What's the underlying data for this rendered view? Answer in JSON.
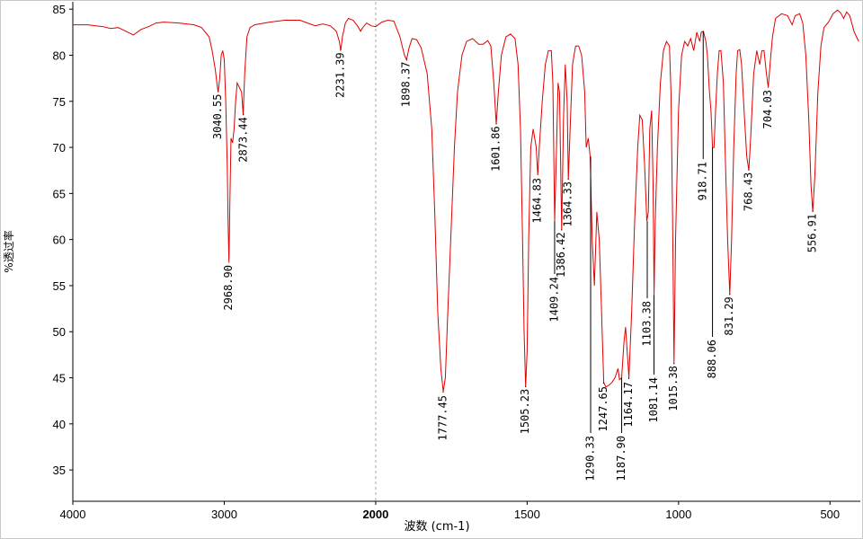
{
  "chart_data": {
    "type": "line",
    "x_label": "波数 (cm-1)",
    "y_label": "%透过率",
    "color": "#e00000",
    "xlim": [
      4000,
      400
    ],
    "x_break": 2000,
    "ylim": [
      31.6,
      85.8
    ],
    "xticks": [
      4000,
      3000,
      2000,
      1500,
      1000,
      500
    ],
    "yticks": [
      35,
      40,
      45,
      50,
      55,
      60,
      65,
      70,
      75,
      80,
      85
    ],
    "x": [
      4000,
      3900,
      3800,
      3750,
      3700,
      3650,
      3600,
      3550,
      3500,
      3450,
      3400,
      3300,
      3200,
      3150,
      3100,
      3080,
      3060,
      3045,
      3040,
      3030,
      3020,
      3010,
      3000,
      2990,
      2980,
      2975,
      2969,
      2963,
      2955,
      2945,
      2935,
      2925,
      2915,
      2900,
      2885,
      2875,
      2865,
      2850,
      2830,
      2800,
      2700,
      2600,
      2500,
      2450,
      2400,
      2350,
      2300,
      2260,
      2240,
      2231,
      2220,
      2200,
      2180,
      2150,
      2120,
      2100,
      2090,
      2060,
      2030,
      2000,
      1980,
      1960,
      1940,
      1920,
      1905,
      1898,
      1890,
      1880,
      1865,
      1850,
      1830,
      1815,
      1805,
      1795,
      1785,
      1777,
      1770,
      1762,
      1750,
      1740,
      1730,
      1715,
      1700,
      1680,
      1660,
      1645,
      1630,
      1620,
      1610,
      1602,
      1595,
      1585,
      1570,
      1555,
      1540,
      1530,
      1522,
      1515,
      1510,
      1505,
      1500,
      1495,
      1488,
      1480,
      1470,
      1465,
      1460,
      1450,
      1440,
      1430,
      1420,
      1415,
      1409,
      1403,
      1398,
      1393,
      1386,
      1380,
      1374,
      1368,
      1364,
      1358,
      1350,
      1340,
      1330,
      1320,
      1310,
      1305,
      1298,
      1292,
      1285,
      1278,
      1270,
      1262,
      1255,
      1247,
      1240,
      1230,
      1220,
      1210,
      1200,
      1195,
      1188,
      1180,
      1175,
      1170,
      1164,
      1155,
      1145,
      1135,
      1128,
      1120,
      1112,
      1105,
      1100,
      1095,
      1089,
      1084,
      1081,
      1077,
      1070,
      1060,
      1050,
      1040,
      1030,
      1025,
      1020,
      1015,
      1010,
      1000,
      990,
      980,
      970,
      960,
      950,
      940,
      930,
      925,
      918,
      910,
      905,
      898,
      893,
      888,
      883,
      878,
      872,
      866,
      860,
      852,
      845,
      838,
      831,
      825,
      818,
      810,
      805,
      798,
      792,
      782,
      775,
      768,
      762,
      752,
      742,
      732,
      725,
      718,
      710,
      704,
      698,
      690,
      680,
      660,
      640,
      625,
      615,
      600,
      590,
      580,
      570,
      563,
      557,
      550,
      540,
      530,
      520,
      505,
      490,
      475,
      465,
      455,
      445,
      435,
      420,
      405
    ],
    "values": [
      83.3,
      83.3,
      83.1,
      82.9,
      83.0,
      82.6,
      82.2,
      82.8,
      83.1,
      83.5,
      83.6,
      83.5,
      83.3,
      83.0,
      82.0,
      80.5,
      78.5,
      76.5,
      76.0,
      77.5,
      80.0,
      80.5,
      79.5,
      75,
      68,
      62,
      57.5,
      64,
      71,
      70.5,
      72,
      75,
      77.0,
      76.5,
      76.0,
      73.5,
      78,
      82,
      83,
      83.3,
      83.6,
      83.8,
      83.8,
      83.5,
      83.2,
      83.4,
      83.2,
      82.6,
      81.5,
      80.5,
      82,
      83.5,
      84.0,
      83.8,
      83.2,
      82.6,
      82.9,
      83.5,
      83.2,
      83.1,
      83.6,
      83.8,
      83.7,
      82.0,
      80.0,
      79.5,
      80.8,
      81.8,
      81.7,
      80.8,
      78,
      72,
      63,
      52,
      46,
      43.5,
      45,
      52,
      62,
      70,
      76,
      80,
      81.5,
      81.8,
      81.2,
      81.2,
      81.6,
      81,
      77,
      72.5,
      76,
      80,
      82,
      82.3,
      81.8,
      79,
      72,
      60,
      50,
      44,
      48,
      60,
      70,
      72,
      70,
      67,
      70,
      75,
      79,
      80.5,
      80.5,
      77,
      62,
      70,
      77,
      76,
      61,
      73,
      79,
      75,
      66.5,
      72,
      79,
      81,
      81,
      80,
      76,
      70,
      71,
      69,
      60,
      55,
      63,
      60,
      53,
      44.5,
      44,
      44.2,
      44.5,
      45,
      46,
      44.8,
      45,
      49,
      50.5,
      48,
      45,
      52,
      62,
      70,
      73.5,
      73,
      68,
      62,
      63,
      72,
      74,
      66,
      54,
      62,
      70,
      77,
      80.5,
      81.5,
      81,
      76,
      63,
      46.5,
      60,
      74,
      80,
      81.5,
      81,
      81.8,
      80.5,
      82.5,
      81.5,
      82.5,
      82.6,
      81.5,
      80,
      76,
      74,
      70,
      70,
      74,
      78,
      80.5,
      80.5,
      77,
      68,
      60,
      54,
      60,
      70,
      78,
      80.5,
      80.6,
      79,
      73,
      69,
      67.5,
      71,
      78,
      80.5,
      79,
      80.5,
      80.5,
      78,
      76.5,
      79,
      82,
      84,
      84.5,
      84.3,
      83.3,
      84.3,
      84.5,
      83.5,
      80,
      73,
      66,
      63,
      67,
      76,
      81,
      83,
      83.6,
      84.5,
      84.9,
      84.6,
      84.0,
      84.7,
      84.3,
      82.5,
      81.5
    ],
    "peaks": [
      {
        "x": 3040.55,
        "y": 76.0
      },
      {
        "x": {
          "value": 2968.9,
          "label": "2968.90"
        },
        "y": 57.5
      },
      {
        "x": 2873.44,
        "y": 73.5
      },
      {
        "x": 2231.39,
        "y": 80.5
      },
      {
        "x": 1898.37,
        "y": 79.5
      },
      {
        "x": 1777.45,
        "y": 43.5
      },
      {
        "x": 1601.86,
        "y": 72.5
      },
      {
        "x": 1505.23,
        "y": 44.0
      },
      {
        "x": 1464.83,
        "y": 67.0
      },
      {
        "x": 1409.24,
        "y": 62.0
      },
      {
        "x": 1386.42,
        "y": 61.0
      },
      {
        "x": 1364.33,
        "y": 66.5
      },
      {
        "x": 1290.33,
        "y": 69.0
      },
      {
        "x": 1247.65,
        "y": 44.5
      },
      {
        "x": {
          "value": 1187.9,
          "label": "1187.90"
        },
        "y": 45.0
      },
      {
        "x": 1164.17,
        "y": 45.0
      },
      {
        "x": 1103.38,
        "y": 62.0
      },
      {
        "x": 1081.14,
        "y": 54.0
      },
      {
        "x": 1015.38,
        "y": 46.5
      },
      {
        "x": 918.71,
        "y": 82.6
      },
      {
        "x": 888.06,
        "y": 70.0
      },
      {
        "x": 831.29,
        "y": 54.0
      },
      {
        "x": 768.43,
        "y": 67.5
      },
      {
        "x": 704.03,
        "y": 76.5
      },
      {
        "x": 556.91,
        "y": 63.0
      }
    ]
  }
}
